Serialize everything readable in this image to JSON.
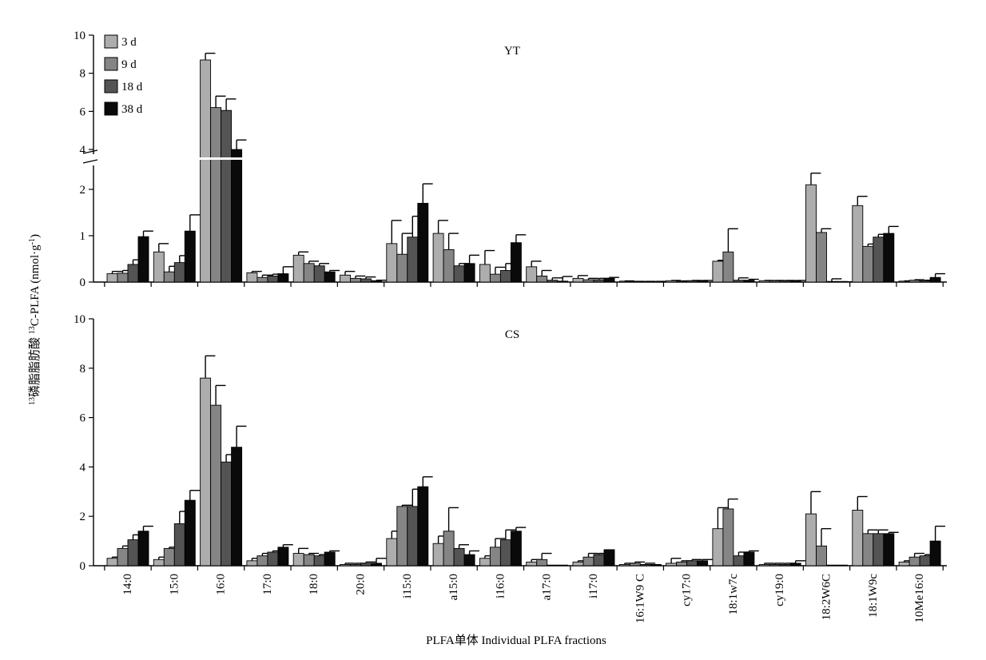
{
  "chart_data": {
    "type": "bar",
    "xlabel": "PLFA单体 Individual PLFA fractions",
    "ylabel": {
      "sup_prefix": "13",
      "main": "磷脂脂肪酸 ",
      "sup_mid": "13",
      "main2": "C-PLFA (nmol·g",
      "sup_suffix": "-1",
      "end": ")"
    },
    "categories": [
      "14:0",
      "15:0",
      "16:0",
      "17:0",
      "18:0",
      "20:0",
      "i15:0",
      "a15:0",
      "i16:0",
      "a17:0",
      "i17:0",
      "16:1W9 C",
      "cy17:0",
      "18:1w7c",
      "cy19:0",
      "18:2W6C",
      "18:1W9c",
      "10Me16:0"
    ],
    "legend": {
      "position": "top-left",
      "entries": [
        "3 d",
        "9 d",
        "18 d",
        "38 d"
      ]
    },
    "colors": [
      "#adadad",
      "#858585",
      "#545454",
      "#0a0a0a"
    ],
    "panels": [
      {
        "label": "YT",
        "y_ticks": [
          0,
          1,
          2,
          4,
          6,
          8,
          10
        ],
        "axis_break": [
          2.5,
          3.5
        ],
        "ylim": [
          0,
          10
        ],
        "series": [
          {
            "name": "3 d",
            "values": [
              0.18,
              0.65,
              8.7,
              0.2,
              0.58,
              0.15,
              0.83,
              1.05,
              0.38,
              0.33,
              0.08,
              0.02,
              0.03,
              0.45,
              0.03,
              2.1,
              1.65,
              0.02
            ],
            "errors": [
              0.05,
              0.18,
              0.35,
              0.03,
              0.07,
              0.08,
              0.5,
              0.28,
              0.3,
              0.12,
              0.06,
              0.005,
              0.005,
              0.02,
              0.005,
              0.25,
              0.2,
              0.005
            ]
          },
          {
            "name": "9 d",
            "values": [
              0.19,
              0.22,
              6.2,
              0.1,
              0.4,
              0.08,
              0.6,
              0.7,
              0.17,
              0.13,
              0.05,
              0.01,
              0.02,
              0.65,
              0.03,
              1.07,
              0.77,
              0.04
            ],
            "errors": [
              0.06,
              0.12,
              0.6,
              0.05,
              0.05,
              0.05,
              0.45,
              0.35,
              0.15,
              0.12,
              0.03,
              0.005,
              0.005,
              0.5,
              0.005,
              0.08,
              0.05,
              0.01
            ]
          },
          {
            "name": "18 d",
            "values": [
              0.38,
              0.42,
              6.05,
              0.13,
              0.35,
              0.07,
              0.97,
              0.35,
              0.25,
              0.04,
              0.05,
              0.01,
              0.03,
              0.04,
              0.03,
              0.01,
              0.97,
              0.03
            ],
            "errors": [
              0.1,
              0.15,
              0.6,
              0.04,
              0.05,
              0.04,
              0.45,
              0.05,
              0.15,
              0.05,
              0.03,
              0.005,
              0.005,
              0.05,
              0.005,
              0.06,
              0.06,
              0.01
            ]
          },
          {
            "name": "38 d",
            "values": [
              0.98,
              1.1,
              4.0,
              0.18,
              0.22,
              0.03,
              1.7,
              0.4,
              0.85,
              0.02,
              0.08,
              0.01,
              0.03,
              0.04,
              0.03,
              0.0,
              1.05,
              0.1
            ],
            "errors": [
              0.12,
              0.35,
              0.5,
              0.15,
              0.03,
              0.01,
              0.42,
              0.18,
              0.17,
              0.1,
              0.02,
              0.005,
              0.005,
              0.02,
              0.005,
              0.005,
              0.15,
              0.08
            ]
          }
        ]
      },
      {
        "label": "CS",
        "y_ticks": [
          0,
          2,
          4,
          6,
          8,
          10
        ],
        "ylim": [
          0,
          10
        ],
        "series": [
          {
            "name": "3 d",
            "values": [
              0.3,
              0.25,
              7.6,
              0.2,
              0.5,
              0.05,
              1.1,
              0.9,
              0.3,
              0.15,
              0.15,
              0.05,
              0.1,
              1.5,
              0.05,
              2.1,
              2.25,
              0.15
            ],
            "errors": [
              0.05,
              0.1,
              0.9,
              0.1,
              0.2,
              0.05,
              0.3,
              0.3,
              0.1,
              0.1,
              0.05,
              0.05,
              0.2,
              0.85,
              0.05,
              0.9,
              0.55,
              0.05
            ]
          },
          {
            "name": "9 d",
            "values": [
              0.7,
              0.7,
              6.5,
              0.4,
              0.45,
              0.05,
              2.4,
              1.4,
              0.75,
              0.25,
              0.35,
              0.1,
              0.15,
              2.3,
              0.05,
              0.8,
              1.3,
              0.35
            ],
            "errors": [
              0.1,
              0.05,
              0.8,
              0.1,
              0.05,
              0.05,
              0.05,
              0.95,
              0.35,
              0.25,
              0.15,
              0.05,
              0.05,
              0.4,
              0.05,
              0.7,
              0.15,
              0.15
            ]
          },
          {
            "name": "18 d",
            "values": [
              1.05,
              1.7,
              4.2,
              0.55,
              0.4,
              0.1,
              2.4,
              0.7,
              1.05,
              0.0,
              0.45,
              0.05,
              0.2,
              0.4,
              0.05,
              0.0,
              1.3,
              0.4
            ],
            "errors": [
              0.2,
              0.5,
              0.3,
              0.05,
              0.05,
              0.05,
              0.7,
              0.15,
              0.4,
              0.0,
              0.05,
              0.05,
              0.05,
              0.15,
              0.05,
              0.0,
              0.15,
              0.05
            ]
          },
          {
            "name": "38 d",
            "values": [
              1.4,
              2.65,
              4.8,
              0.75,
              0.55,
              0.1,
              3.2,
              0.45,
              1.4,
              0.0,
              0.65,
              0.05,
              0.2,
              0.55,
              0.1,
              0.0,
              1.3,
              1.0
            ],
            "errors": [
              0.2,
              0.4,
              0.85,
              0.1,
              0.05,
              0.2,
              0.4,
              0.15,
              0.15,
              0.0,
              0.0,
              0.0,
              0.05,
              0.05,
              0.1,
              0.0,
              0.05,
              0.6
            ]
          }
        ]
      }
    ]
  }
}
